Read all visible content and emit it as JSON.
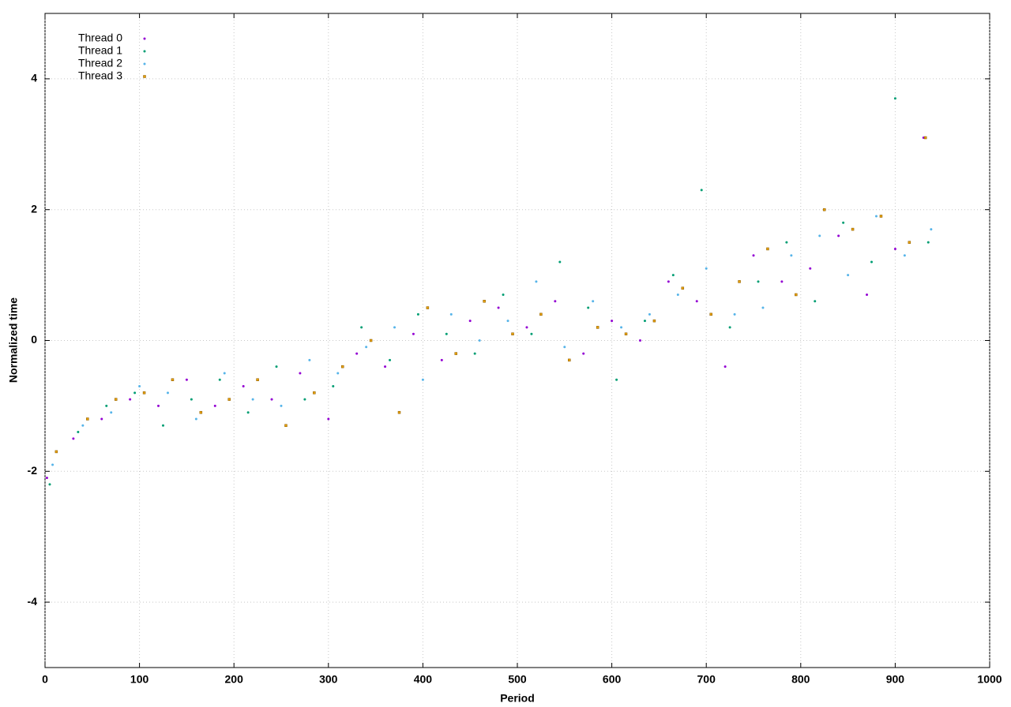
{
  "chart_data": {
    "type": "scatter",
    "xlabel": "Period",
    "ylabel": "Normalized time",
    "xlim": [
      0,
      1000
    ],
    "ylim": [
      -5,
      5
    ],
    "xticks": [
      0,
      100,
      200,
      300,
      400,
      500,
      600,
      700,
      800,
      900,
      1000
    ],
    "yticks": [
      -4,
      -2,
      0,
      2,
      4
    ],
    "grid": true,
    "legend": "top-left",
    "series": [
      {
        "name": "Thread 0",
        "color": "#9400d3",
        "marker": "dot",
        "x": [
          2,
          30,
          60,
          90,
          120,
          150,
          180,
          210,
          240,
          270,
          300,
          330,
          360,
          390,
          420,
          450,
          480,
          510,
          540,
          570,
          600,
          630,
          660,
          690,
          720,
          750,
          780,
          810,
          840,
          870,
          900,
          930
        ],
        "values": [
          -2.1,
          -1.5,
          -1.2,
          -0.9,
          -1.0,
          -0.6,
          -1.0,
          -0.7,
          -0.9,
          -0.5,
          -1.2,
          -0.2,
          -0.4,
          0.1,
          -0.3,
          0.3,
          0.5,
          0.2,
          0.6,
          -0.2,
          0.3,
          0.0,
          0.9,
          0.6,
          -0.4,
          1.3,
          0.9,
          1.1,
          1.6,
          0.7,
          1.4,
          3.1
        ]
      },
      {
        "name": "Thread 1",
        "color": "#009e73",
        "marker": "dot",
        "x": [
          5,
          35,
          65,
          95,
          125,
          155,
          185,
          215,
          245,
          275,
          305,
          335,
          365,
          395,
          425,
          455,
          485,
          515,
          545,
          575,
          605,
          635,
          665,
          695,
          725,
          755,
          785,
          815,
          845,
          875,
          900,
          935
        ],
        "values": [
          -2.2,
          -1.4,
          -1.0,
          -0.8,
          -1.3,
          -0.9,
          -0.6,
          -1.1,
          -0.4,
          -0.9,
          -0.7,
          0.2,
          -0.3,
          0.4,
          0.1,
          -0.2,
          0.7,
          0.1,
          1.2,
          0.5,
          -0.6,
          0.3,
          1.0,
          2.3,
          0.2,
          0.9,
          1.5,
          0.6,
          1.8,
          1.2,
          3.7,
          1.5
        ]
      },
      {
        "name": "Thread 2",
        "color": "#56b4e9",
        "marker": "dot",
        "x": [
          8,
          40,
          70,
          100,
          130,
          160,
          190,
          220,
          250,
          280,
          310,
          340,
          370,
          400,
          430,
          460,
          490,
          520,
          550,
          580,
          610,
          640,
          670,
          700,
          730,
          760,
          790,
          820,
          850,
          880,
          910,
          938
        ],
        "values": [
          -1.9,
          -1.3,
          -1.1,
          -0.7,
          -0.8,
          -1.2,
          -0.5,
          -0.9,
          -1.0,
          -0.3,
          -0.5,
          -0.1,
          0.2,
          -0.6,
          0.4,
          0.0,
          0.3,
          0.9,
          -0.1,
          0.6,
          0.2,
          0.4,
          0.7,
          1.1,
          0.4,
          0.5,
          1.3,
          1.6,
          1.0,
          1.9,
          1.3,
          1.7
        ]
      },
      {
        "name": "Thread 3",
        "color": "#e69f00",
        "marker": "square",
        "x": [
          12,
          45,
          75,
          105,
          135,
          165,
          195,
          225,
          255,
          285,
          315,
          345,
          375,
          405,
          435,
          465,
          495,
          525,
          555,
          585,
          615,
          645,
          675,
          705,
          735,
          765,
          795,
          825,
          855,
          885,
          915,
          932
        ],
        "values": [
          -1.7,
          -1.2,
          -0.9,
          -0.8,
          -0.6,
          -1.1,
          -0.9,
          -0.6,
          -1.3,
          -0.8,
          -0.4,
          0.0,
          -1.1,
          0.5,
          -0.2,
          0.6,
          0.1,
          0.4,
          -0.3,
          0.2,
          0.1,
          0.3,
          0.8,
          0.4,
          0.9,
          1.4,
          0.7,
          2.0,
          1.7,
          1.9,
          1.5,
          3.1
        ]
      }
    ]
  }
}
